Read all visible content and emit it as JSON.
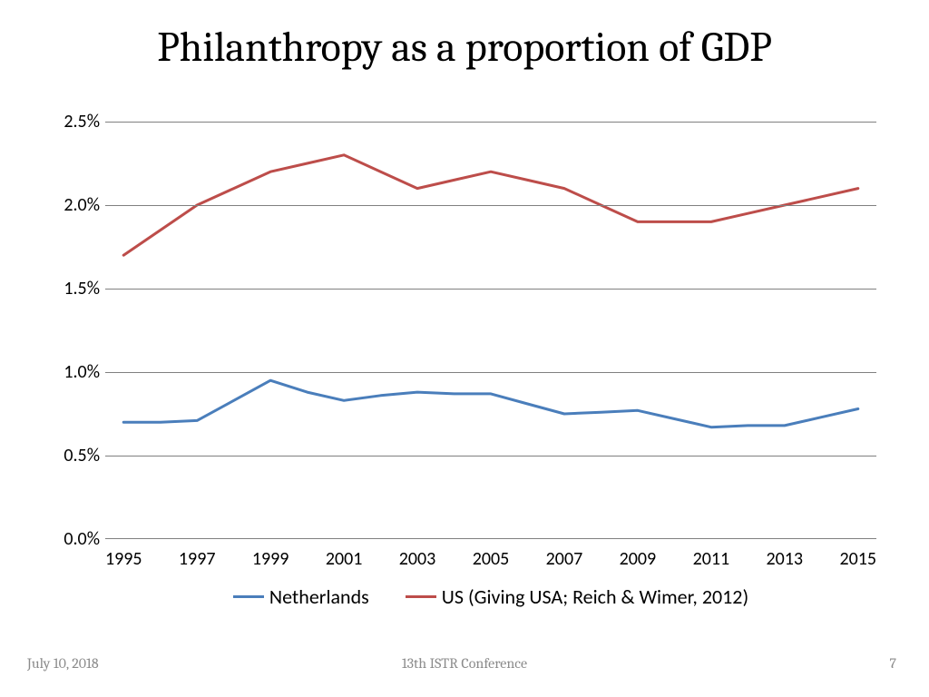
{
  "title": "Philanthropy as a proportion of GDP",
  "chart": {
    "type": "line",
    "background_color": "#ffffff",
    "grid_color": "#808080",
    "axis_line_color": "#808080",
    "ylim": [
      0.0,
      2.5
    ],
    "ytick_step": 0.5,
    "ytick_labels": [
      "0.0%",
      "0.5%",
      "1.0%",
      "1.5%",
      "2.0%",
      "2.5%"
    ],
    "x_categories": [
      "1995",
      "1996",
      "1997",
      "1998",
      "1999",
      "2000",
      "2001",
      "2002",
      "2003",
      "2004",
      "2005",
      "2006",
      "2007",
      "2008",
      "2009",
      "2010",
      "2011",
      "2012",
      "2013",
      "2014",
      "2015"
    ],
    "x_show_labels": [
      "1995",
      "1997",
      "1999",
      "2001",
      "2003",
      "2005",
      "2007",
      "2009",
      "2011",
      "2013",
      "2015"
    ],
    "x_label_fontsize": 20,
    "y_label_fontsize": 20,
    "line_width": 3,
    "series": [
      {
        "name": "Netherlands",
        "color": "#4a7ebb",
        "values": [
          0.7,
          0.7,
          0.71,
          0.83,
          0.95,
          0.88,
          0.83,
          0.86,
          0.88,
          0.87,
          0.87,
          0.81,
          0.75,
          0.76,
          0.77,
          0.72,
          0.67,
          0.68,
          0.68,
          0.73,
          0.78
        ]
      },
      {
        "name": "US (Giving USA; Reich & Wimer, 2012)",
        "color": "#bd4d4a",
        "values": [
          1.7,
          1.85,
          2.0,
          2.1,
          2.2,
          2.25,
          2.3,
          2.2,
          2.1,
          2.15,
          2.2,
          2.15,
          2.1,
          2.0,
          1.9,
          1.9,
          1.9,
          1.95,
          2.0,
          2.05,
          2.1
        ]
      }
    ],
    "legend_fontsize": 22,
    "legend_position": "bottom"
  },
  "footer": {
    "date": "July 10, 2018",
    "conference": "13th ISTR Conference",
    "page": "7",
    "color": "#8b8b8b",
    "fontsize": 16
  }
}
